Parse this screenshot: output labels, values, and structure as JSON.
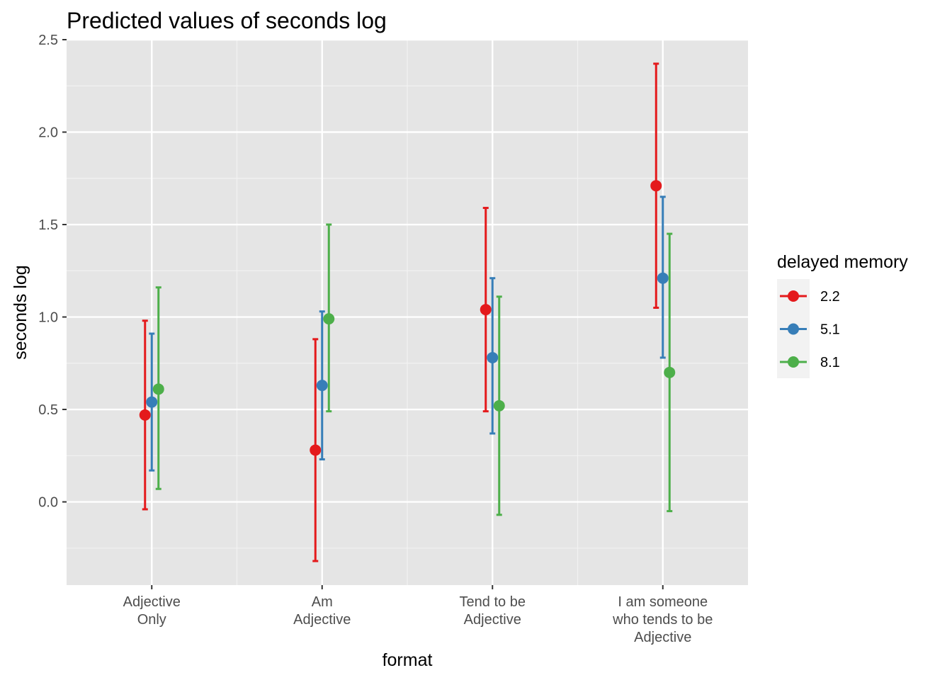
{
  "chart_data": {
    "type": "scatter",
    "title": "Predicted values of seconds log",
    "xlabel": "format",
    "ylabel": "seconds log",
    "categories": [
      [
        "Adjective",
        "Only"
      ],
      [
        "Am",
        "Adjective"
      ],
      [
        "Tend to be",
        "Adjective"
      ],
      [
        "I am someone",
        "who tends to be",
        "Adjective"
      ]
    ],
    "y_ticks": [
      "0.0",
      "0.5",
      "1.0",
      "1.5",
      "2.0",
      "2.5"
    ],
    "ylim": [
      -0.45,
      2.5
    ],
    "grid": true,
    "legend": {
      "title": "delayed memory",
      "position": "right"
    },
    "series": [
      {
        "name": "2.2",
        "color": "#e41a1c",
        "values": [
          0.47,
          0.28,
          1.04,
          1.71
        ],
        "lower": [
          -0.04,
          -0.32,
          0.49,
          1.05
        ],
        "upper": [
          0.98,
          0.88,
          1.59,
          2.37
        ]
      },
      {
        "name": "5.1",
        "color": "#377eb8",
        "values": [
          0.54,
          0.63,
          0.78,
          1.21
        ],
        "lower": [
          0.17,
          0.23,
          0.37,
          0.78
        ],
        "upper": [
          0.91,
          1.03,
          1.21,
          1.65
        ]
      },
      {
        "name": "8.1",
        "color": "#4daf4a",
        "values": [
          0.61,
          0.99,
          0.52,
          0.7
        ],
        "lower": [
          0.07,
          0.49,
          -0.07,
          -0.05
        ],
        "upper": [
          1.16,
          1.5,
          1.11,
          1.45
        ]
      }
    ]
  }
}
